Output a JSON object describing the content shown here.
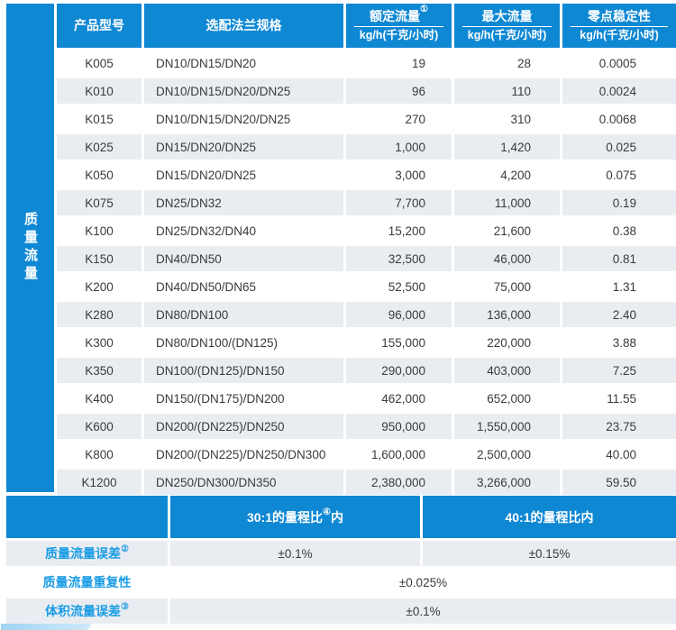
{
  "colors": {
    "accent_blue": "#0f88d4",
    "stripe_gray": "#e9edf2",
    "label_blue": "#1a9ce4",
    "header_text": "#ffffff",
    "body_text": "#3a3a3a",
    "decoration_blue": "#9fd4f1"
  },
  "table": {
    "sidebar_label": "质量流量",
    "columns": [
      {
        "label": "产品型号",
        "sup": "",
        "unit": ""
      },
      {
        "label": "选配法兰规格",
        "sup": "",
        "unit": ""
      },
      {
        "label": "额定流量",
        "sup": "①",
        "unit": "kg/h(千克/小时)"
      },
      {
        "label": "最大流量",
        "sup": "",
        "unit": "kg/h(千克/小时)"
      },
      {
        "label": "零点稳定性",
        "sup": "",
        "unit": "kg/h(千克/小时)"
      }
    ],
    "rows": [
      [
        "K005",
        "DN10/DN15/DN20",
        "19",
        "28",
        "0.0005"
      ],
      [
        "K010",
        "DN10/DN15/DN20/DN25",
        "96",
        "110",
        "0.0024"
      ],
      [
        "K015",
        "DN10/DN15/DN20/DN25",
        "270",
        "310",
        "0.0068"
      ],
      [
        "K025",
        "DN15/DN20/DN25",
        "1,000",
        "1,420",
        "0.025"
      ],
      [
        "K050",
        "DN15/DN20/DN25",
        "3,000",
        "4,200",
        "0.075"
      ],
      [
        "K075",
        "DN25/DN32",
        "7,700",
        "11,000",
        "0.19"
      ],
      [
        "K100",
        "DN25/DN32/DN40",
        "15,200",
        "21,600",
        "0.38"
      ],
      [
        "K150",
        "DN40/DN50",
        "32,500",
        "46,000",
        "0.81"
      ],
      [
        "K200",
        "DN40/DN50/DN65",
        "52,500",
        "75,000",
        "1.31"
      ],
      [
        "K280",
        "DN80/DN100",
        "96,000",
        "136,000",
        "2.40"
      ],
      [
        "K300",
        "DN80/DN100/(DN125)",
        "155,000",
        "220,000",
        "3.88"
      ],
      [
        "K350",
        "DN100/(DN125)/DN150",
        "290,000",
        "403,000",
        "7.25"
      ],
      [
        "K400",
        "DN150/(DN175)/DN200",
        "462,000",
        "652,000",
        "11.55"
      ],
      [
        "K600",
        "DN200/(DN225)/DN250",
        "950,000",
        "1,550,000",
        "23.75"
      ],
      [
        "K800",
        "DN200/(DN225)/DN250/DN300",
        "1,600,000",
        "2,500,000",
        "40.00"
      ],
      [
        "K1200",
        "DN250/DN300/DN350",
        "2,380,000",
        "3,266,000",
        "59.50"
      ]
    ]
  },
  "accuracy": {
    "range_headers": [
      {
        "text": "30:1的量程比",
        "sup": "④",
        "tail": "内"
      },
      {
        "text": "40:1的量程比内",
        "sup": "",
        "tail": ""
      }
    ],
    "rows": [
      {
        "label": "质量流量误差",
        "sup": "②",
        "values": [
          "±0.1%",
          "±0.15%"
        ]
      },
      {
        "label": "质量流量重复性",
        "sup": "",
        "values": [
          "±0.025%"
        ]
      },
      {
        "label": "体积流量误差",
        "sup": "③",
        "values": [
          "±0.1%"
        ]
      }
    ]
  }
}
